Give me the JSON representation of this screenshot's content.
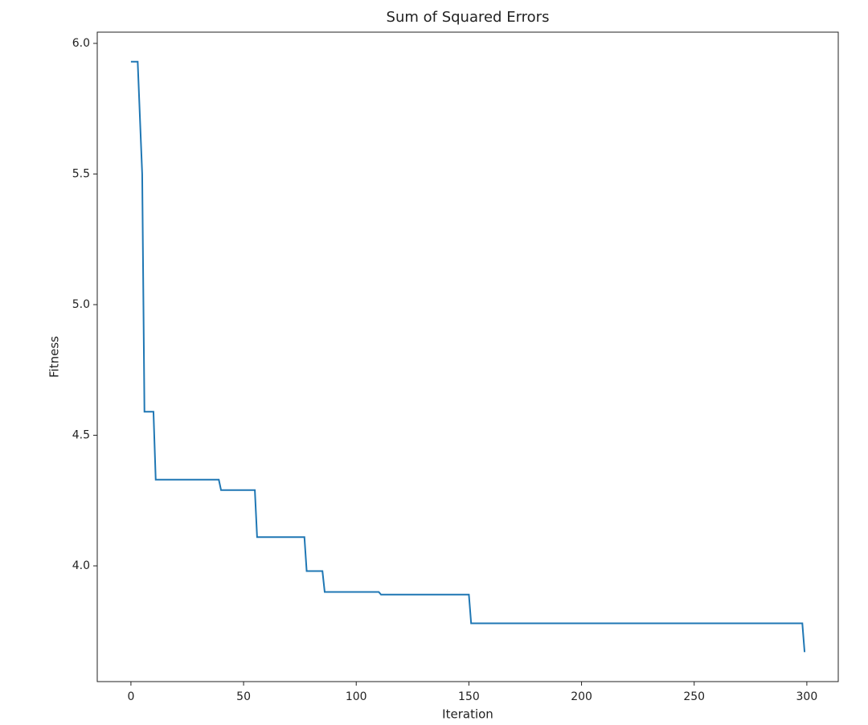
{
  "chart_data": {
    "type": "line",
    "title": "Sum of Squared Errors",
    "x_label": "Iteration",
    "y_label": "Fitness",
    "x": [
      0,
      3,
      5,
      6,
      10,
      11,
      39,
      40,
      55,
      56,
      77,
      78,
      85,
      86,
      110,
      111,
      150,
      151,
      298,
      299
    ],
    "series": [
      {
        "name": "Fitness",
        "color": "#1f77b4",
        "values": [
          5.93,
          5.93,
          5.5,
          4.59,
          4.59,
          4.33,
          4.33,
          4.29,
          4.29,
          4.11,
          4.11,
          3.98,
          3.98,
          3.9,
          3.9,
          3.89,
          3.89,
          3.78,
          3.78,
          3.67
        ]
      }
    ],
    "xlim": [
      -14.95,
      313.95
    ],
    "xticks": [
      0,
      50,
      100,
      150,
      200,
      250,
      300
    ],
    "ylim": [
      3.557,
      6.043
    ],
    "yticks": [
      {
        "value": 4.0,
        "label": "4.0"
      },
      4.5,
      {
        "value": 5.0,
        "label": "5.0"
      },
      5.5,
      {
        "value": 6.0,
        "label": "6.0"
      }
    ],
    "grid": false
  }
}
